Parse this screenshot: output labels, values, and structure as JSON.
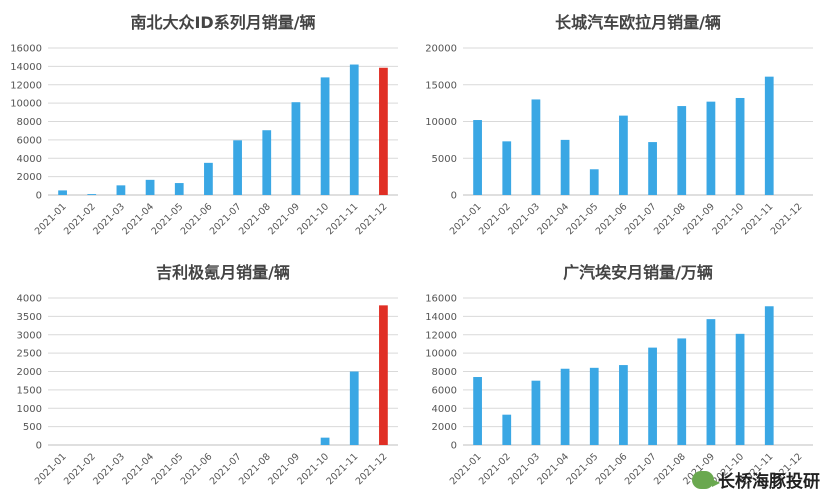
{
  "colors": {
    "bar": "#3aa7e4",
    "highlight": "#e02f25"
  },
  "watermark": {
    "text": "长桥海豚投研",
    "icon": "wechat-icon"
  },
  "chart_data": [
    {
      "type": "bar",
      "title": "南北大众ID系列月销量/辆",
      "categories": [
        "2021-01",
        "2021-02",
        "2021-03",
        "2021-04",
        "2021-05",
        "2021-06",
        "2021-07",
        "2021-08",
        "2021-09",
        "2021-10",
        "2021-11",
        "2021-12"
      ],
      "values": [
        500,
        100,
        1050,
        1650,
        1300,
        3500,
        5950,
        7050,
        10100,
        12800,
        14200,
        13850
      ],
      "highlight_index": 11,
      "ylim": [
        0,
        16000
      ],
      "yticks": [
        0,
        2000,
        4000,
        6000,
        8000,
        10000,
        12000,
        14000,
        16000
      ],
      "grid": true
    },
    {
      "type": "bar",
      "title": "长城汽车欧拉月销量/辆",
      "categories": [
        "2021-01",
        "2021-02",
        "2021-03",
        "2021-04",
        "2021-05",
        "2021-06",
        "2021-07",
        "2021-08",
        "2021-09",
        "2021-10",
        "2021-11",
        "2021-12"
      ],
      "values": [
        10200,
        7300,
        13000,
        7500,
        3500,
        10800,
        7200,
        12100,
        12700,
        13200,
        16100,
        null
      ],
      "highlight_index": null,
      "ylim": [
        0,
        20000
      ],
      "yticks": [
        0,
        5000,
        10000,
        15000,
        20000
      ],
      "grid": true
    },
    {
      "type": "bar",
      "title": "吉利极氪月销量/辆",
      "categories": [
        "2021-01",
        "2021-02",
        "2021-03",
        "2021-04",
        "2021-05",
        "2021-06",
        "2021-07",
        "2021-08",
        "2021-09",
        "2021-10",
        "2021-11",
        "2021-12"
      ],
      "values": [
        null,
        null,
        null,
        null,
        null,
        null,
        null,
        null,
        null,
        200,
        2000,
        3800
      ],
      "highlight_index": 11,
      "ylim": [
        0,
        4000
      ],
      "yticks": [
        0,
        500,
        1000,
        1500,
        2000,
        2500,
        3000,
        3500,
        4000
      ],
      "grid": true
    },
    {
      "type": "bar",
      "title": "广汽埃安月销量/万辆",
      "categories": [
        "2021-01",
        "2021-02",
        "2021-03",
        "2021-04",
        "2021-05",
        "2021-06",
        "2021-07",
        "2021-08",
        "2021-09",
        "2021-10",
        "2021-11",
        "2021-12"
      ],
      "values": [
        7400,
        3300,
        7000,
        8300,
        8400,
        8700,
        10600,
        11600,
        13700,
        12100,
        15100,
        null
      ],
      "highlight_index": null,
      "ylim": [
        0,
        16000
      ],
      "yticks": [
        0,
        2000,
        4000,
        6000,
        8000,
        10000,
        12000,
        14000,
        16000
      ],
      "grid": true
    }
  ]
}
